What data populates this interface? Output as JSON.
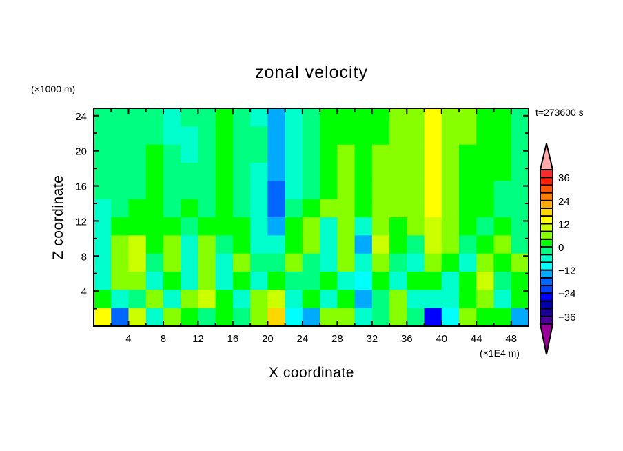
{
  "chart_data": {
    "type": "heatmap",
    "title": "zonal velocity",
    "xlabel": "X coordinate",
    "ylabel": "Z coordinate",
    "x_unit_label": "(×1E4 m)",
    "y_unit_label": "(×1000 m)",
    "time_label": "t=273600 s",
    "xlim": [
      0,
      50
    ],
    "ylim": [
      0,
      24.85
    ],
    "xticks": [
      4,
      8,
      12,
      16,
      20,
      24,
      28,
      32,
      36,
      40,
      44,
      48
    ],
    "xtick_labels": [
      "4",
      "8",
      "12",
      "16",
      "20",
      "24",
      "28",
      "32",
      "36",
      "40",
      "44",
      "48"
    ],
    "yticks": [
      4,
      8,
      12,
      16,
      20,
      24
    ],
    "ytick_labels": [
      "4",
      "8",
      "12",
      "16",
      "20",
      "24"
    ],
    "grid": false,
    "x_centers": [
      1,
      3,
      5,
      7,
      9,
      11,
      13,
      15,
      17,
      19,
      21,
      23,
      25,
      27,
      29,
      31,
      33,
      35,
      37,
      39,
      41,
      43,
      45,
      47,
      49
    ],
    "z_centers_top_to_bottom": [
      23.8,
      21.8,
      19.7,
      17.6,
      15.6,
      13.5,
      11.4,
      9.3,
      7.3,
      5.2,
      3.1,
      1.0
    ],
    "values": [
      [
        -2,
        -2,
        -2,
        -2,
        -6,
        -2,
        -2,
        2,
        -4,
        -6,
        -14,
        -8,
        -2,
        2,
        2,
        2,
        2,
        6,
        6,
        12,
        6,
        6,
        2,
        2,
        -2
      ],
      [
        -2,
        -2,
        -2,
        -2,
        -6,
        -6,
        -2,
        2,
        -4,
        -4,
        -14,
        -8,
        -2,
        2,
        2,
        2,
        2,
        6,
        6,
        12,
        6,
        6,
        2,
        2,
        -2
      ],
      [
        -2,
        -2,
        -2,
        2,
        -2,
        -6,
        -2,
        2,
        -4,
        -4,
        -14,
        -6,
        -2,
        2,
        6,
        2,
        6,
        6,
        6,
        12,
        6,
        2,
        2,
        2,
        -2
      ],
      [
        -2,
        -2,
        -2,
        2,
        -2,
        -2,
        -2,
        2,
        -4,
        -6,
        -14,
        -6,
        -2,
        2,
        6,
        2,
        6,
        6,
        6,
        12,
        6,
        2,
        2,
        2,
        -2
      ],
      [
        -2,
        -2,
        -2,
        2,
        -2,
        -2,
        -2,
        2,
        -2,
        -6,
        -18,
        -6,
        -2,
        2,
        6,
        2,
        6,
        6,
        6,
        12,
        6,
        2,
        2,
        -2,
        -2
      ],
      [
        -6,
        -2,
        2,
        2,
        -2,
        2,
        -2,
        2,
        -2,
        -6,
        -18,
        -4,
        2,
        6,
        6,
        2,
        6,
        6,
        6,
        12,
        6,
        2,
        2,
        -2,
        -2
      ],
      [
        -6,
        2,
        2,
        2,
        2,
        -2,
        2,
        2,
        2,
        -6,
        -14,
        2,
        6,
        -6,
        6,
        -8,
        6,
        2,
        6,
        10,
        6,
        2,
        -2,
        2,
        -2
      ],
      [
        -8,
        6,
        10,
        2,
        6,
        -6,
        6,
        -2,
        2,
        -8,
        -8,
        2,
        6,
        -8,
        6,
        -14,
        10,
        2,
        -2,
        10,
        6,
        -2,
        2,
        6,
        -2
      ],
      [
        -8,
        6,
        10,
        -4,
        6,
        -6,
        6,
        -8,
        6,
        -2,
        -4,
        6,
        -2,
        -8,
        6,
        -8,
        6,
        -4,
        -8,
        6,
        2,
        -6,
        6,
        2,
        6
      ],
      [
        -6,
        6,
        6,
        -6,
        2,
        -8,
        6,
        -8,
        2,
        -6,
        2,
        -4,
        -2,
        2,
        -8,
        -10,
        2,
        -8,
        2,
        2,
        -8,
        2,
        10,
        -4,
        2
      ],
      [
        2,
        -6,
        -2,
        6,
        -8,
        6,
        10,
        2,
        -6,
        6,
        10,
        -8,
        2,
        -8,
        2,
        -14,
        -2,
        6,
        -6,
        -8,
        -6,
        2,
        6,
        -6,
        2
      ],
      [
        14,
        -20,
        10,
        -6,
        6,
        2,
        -4,
        2,
        -2,
        6,
        16,
        -10,
        -14,
        4,
        6,
        -8,
        -4,
        6,
        -2,
        -28,
        -12,
        4,
        2,
        2,
        -14
      ]
    ],
    "colorbar": {
      "levels": [
        -40,
        -36,
        -32,
        -28,
        -24,
        -20,
        -16,
        -12,
        -8,
        -4,
        0,
        4,
        8,
        12,
        16,
        20,
        24,
        28,
        32,
        36,
        40
      ],
      "colors_low_to_high": [
        "#4b0099",
        "#1a0099",
        "#0000aa",
        "#0000ff",
        "#0044ff",
        "#0066ff",
        "#00aaff",
        "#00ffff",
        "#00ffcc",
        "#00ff80",
        "#00ff00",
        "#88ff00",
        "#ccff00",
        "#ffff00",
        "#ffd700",
        "#ffaa00",
        "#ff7f00",
        "#ff5500",
        "#ff2200",
        "#ff2a2a"
      ],
      "under_color": "#990099",
      "over_color": "#ffaaaa",
      "tick_values": [
        -36,
        -24,
        -12,
        0,
        12,
        24,
        36
      ],
      "tick_labels": [
        "−36",
        "−24",
        "−12",
        "0",
        "12",
        "24",
        "36"
      ]
    }
  }
}
